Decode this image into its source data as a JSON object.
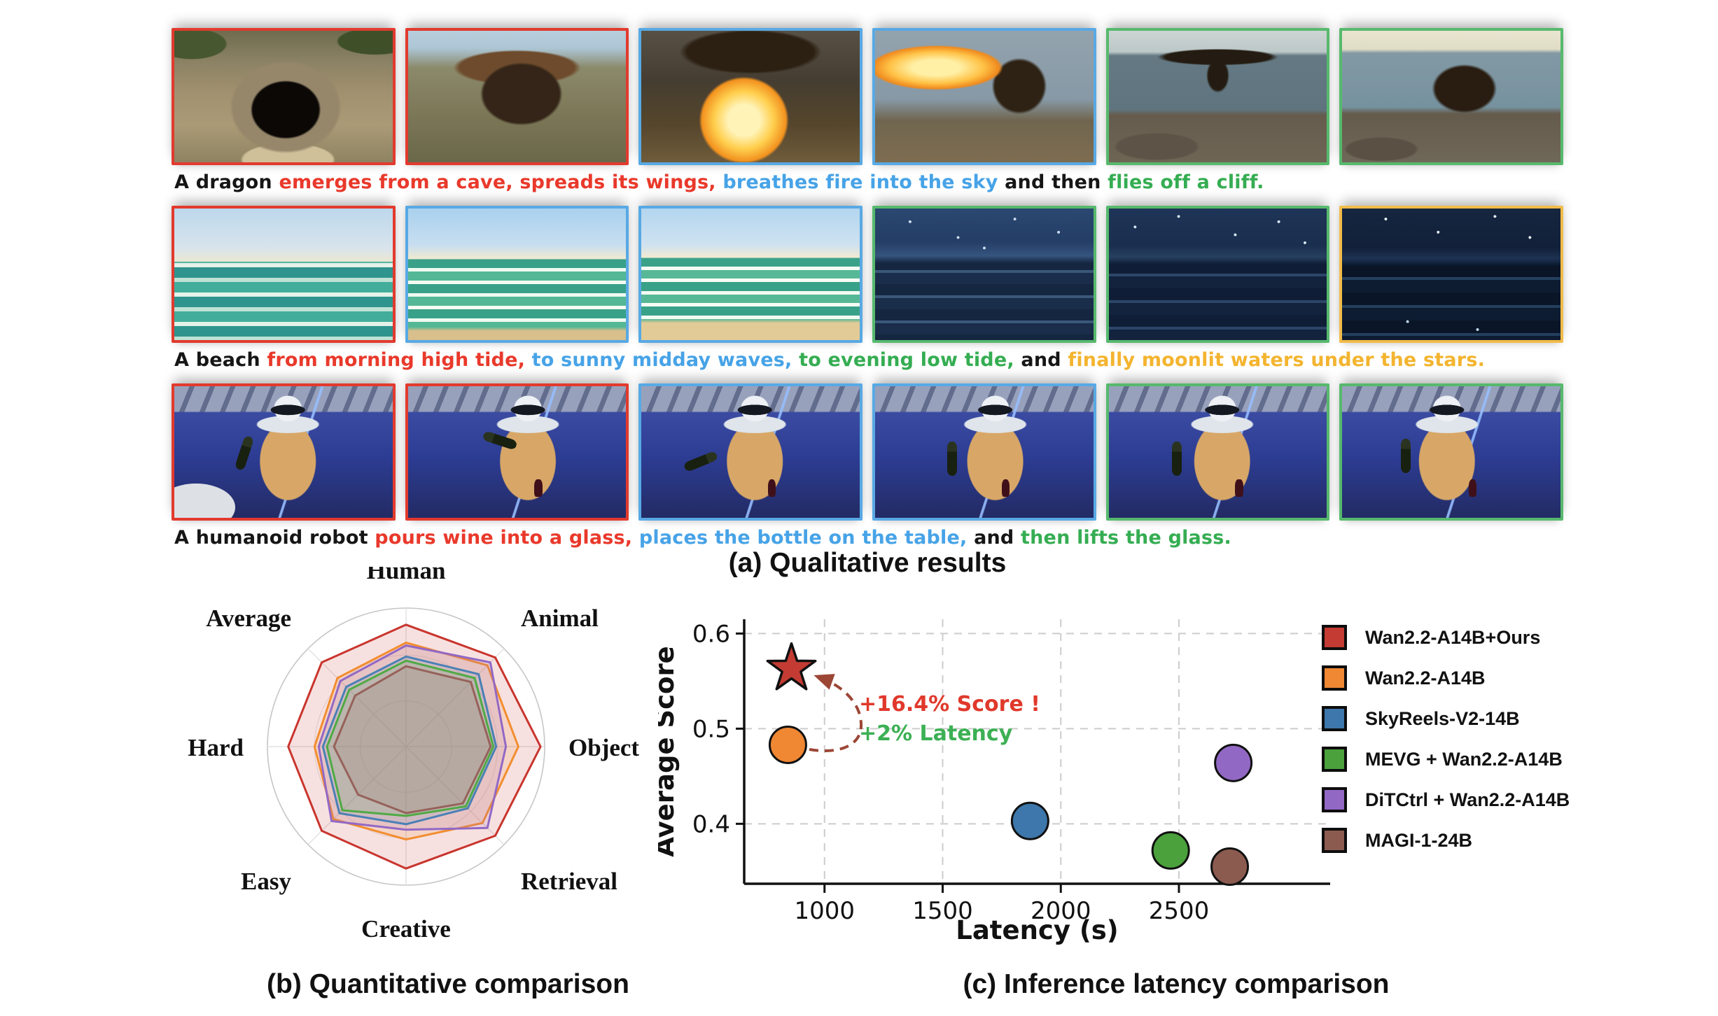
{
  "palette": {
    "text": {
      "black": "#161616",
      "red": "#e9392b",
      "blue": "#47a3e7",
      "green": "#35ad52",
      "gold": "#f3b42f"
    },
    "border": {
      "red": "#e23a2e",
      "blue": "#58a9e4",
      "green": "#57b96d",
      "gold": "#f2bc4a"
    }
  },
  "panel_a": {
    "title": "(a) Qualitative results",
    "rows": [
      {
        "frames": [
          {
            "scene": "dragon-cave",
            "border": "red"
          },
          {
            "scene": "dragon-emerge",
            "border": "red"
          },
          {
            "scene": "dragon-fire-sky",
            "border": "blue"
          },
          {
            "scene": "dragon-fire-cliff",
            "border": "blue"
          },
          {
            "scene": "dragon-cliff-wings",
            "border": "green"
          },
          {
            "scene": "dragon-flyoff",
            "border": "green"
          }
        ],
        "caption": [
          {
            "text": "A dragon ",
            "color": "black"
          },
          {
            "text": "emerges from a cave, spreads its wings, ",
            "color": "red"
          },
          {
            "text": "breathes fire into the sky",
            "color": "blue"
          },
          {
            "text": " and then ",
            "color": "black"
          },
          {
            "text": "flies off a cliff.",
            "color": "green"
          }
        ]
      },
      {
        "frames": [
          {
            "scene": "beach-morning",
            "border": "red"
          },
          {
            "scene": "beach-midday-1",
            "border": "blue"
          },
          {
            "scene": "beach-midday-2",
            "border": "blue"
          },
          {
            "scene": "beach-evening",
            "border": "green"
          },
          {
            "scene": "beach-night",
            "border": "green"
          },
          {
            "scene": "beach-moonlit",
            "border": "gold"
          }
        ],
        "caption": [
          {
            "text": "A beach ",
            "color": "black"
          },
          {
            "text": "from morning high tide, ",
            "color": "red"
          },
          {
            "text": "to sunny midday waves, ",
            "color": "blue"
          },
          {
            "text": "to evening low tide, ",
            "color": "green"
          },
          {
            "text": "and ",
            "color": "black"
          },
          {
            "text": "finally moonlit waters under the stars.",
            "color": "gold"
          }
        ]
      },
      {
        "frames": [
          {
            "scene": "robot-hold",
            "border": "red"
          },
          {
            "scene": "robot-pour",
            "border": "red"
          },
          {
            "scene": "robot-place-1",
            "border": "blue"
          },
          {
            "scene": "robot-place-2",
            "border": "blue"
          },
          {
            "scene": "robot-lift-1",
            "border": "green"
          },
          {
            "scene": "robot-lift-2",
            "border": "green"
          }
        ],
        "caption": [
          {
            "text": "A humanoid robot ",
            "color": "black"
          },
          {
            "text": "pours wine into a glass, ",
            "color": "red"
          },
          {
            "text": "places the bottle on the table, ",
            "color": "blue"
          },
          {
            "text": "and ",
            "color": "black"
          },
          {
            "text": "then lifts the glass.",
            "color": "green"
          }
        ]
      }
    ]
  },
  "panel_b": {
    "title": "(b) Quantitative comparison"
  },
  "panel_c": {
    "title": "(c) Inference latency comparison"
  },
  "chart_data": [
    {
      "type": "radar",
      "axes": [
        "Human",
        "Animal",
        "Object",
        "Retrieval",
        "Creative",
        "Easy",
        "Hard",
        "Average"
      ],
      "scale_max": 1.0,
      "grid_rings": [
        0.33,
        0.66,
        1.0
      ],
      "series": [
        {
          "name": "Wan2.2-A14B+Ours",
          "color": "#c9352e",
          "values": [
            0.88,
            0.91,
            0.97,
            0.91,
            0.88,
            0.86,
            0.85,
            0.86
          ]
        },
        {
          "name": "Wan2.2-A14B",
          "color": "#f28d2f",
          "values": [
            0.75,
            0.83,
            0.81,
            0.78,
            0.67,
            0.74,
            0.66,
            0.7
          ]
        },
        {
          "name": "DiTCtrl + Wan2.2-A14B",
          "color": "#9268c5",
          "values": [
            0.73,
            0.86,
            0.72,
            0.83,
            0.6,
            0.76,
            0.63,
            0.67
          ]
        },
        {
          "name": "SkyReels-V2-14B",
          "color": "#4a80b5",
          "values": [
            0.65,
            0.74,
            0.65,
            0.63,
            0.56,
            0.68,
            0.6,
            0.61
          ]
        },
        {
          "name": "MEVG + Wan2.2-A14B",
          "color": "#4faa44",
          "values": [
            0.62,
            0.7,
            0.63,
            0.61,
            0.5,
            0.65,
            0.57,
            0.58
          ]
        },
        {
          "name": "MAGI-1-24B",
          "color": "#96625a",
          "values": [
            0.58,
            0.66,
            0.61,
            0.58,
            0.48,
            0.49,
            0.52,
            0.52
          ]
        }
      ]
    },
    {
      "type": "scatter",
      "xlabel": "Latency (s)",
      "ylabel": "Average Score",
      "xlim": [
        660,
        3140
      ],
      "ylim": [
        0.337,
        0.615
      ],
      "xticks": [
        1000,
        1500,
        2000,
        2500
      ],
      "yticks": [
        0.4,
        0.5,
        0.6
      ],
      "grid": true,
      "points": [
        {
          "name": "Wan2.2-A14B+Ours",
          "x": 860,
          "y": 0.563,
          "marker": "star",
          "color": "#c43b33"
        },
        {
          "name": "Wan2.2-A14B",
          "x": 845,
          "y": 0.483,
          "marker": "circle",
          "color": "#ef8733"
        },
        {
          "name": "SkyReels-V2-14B",
          "x": 1870,
          "y": 0.403,
          "marker": "circle",
          "color": "#3d77ab"
        },
        {
          "name": "MEVG + Wan2.2-A14B",
          "x": 2465,
          "y": 0.372,
          "marker": "circle",
          "color": "#4ba13c"
        },
        {
          "name": "DiTCtrl + Wan2.2-A14B",
          "x": 2730,
          "y": 0.464,
          "marker": "circle",
          "color": "#9268c5"
        },
        {
          "name": "MAGI-1-24B",
          "x": 2715,
          "y": 0.355,
          "marker": "circle",
          "color": "#8c5b50"
        }
      ],
      "annotations": [
        {
          "text": "+16.4% Score !",
          "color": "#e0392b"
        },
        {
          "text": "+2% Latency",
          "color": "#3cb054"
        }
      ],
      "legend_position": "right",
      "legend": [
        "Wan2.2-A14B+Ours",
        "Wan2.2-A14B",
        "SkyReels-V2-14B",
        "MEVG + Wan2.2-A14B",
        "DiTCtrl + Wan2.2-A14B",
        "MAGI-1-24B"
      ]
    }
  ]
}
